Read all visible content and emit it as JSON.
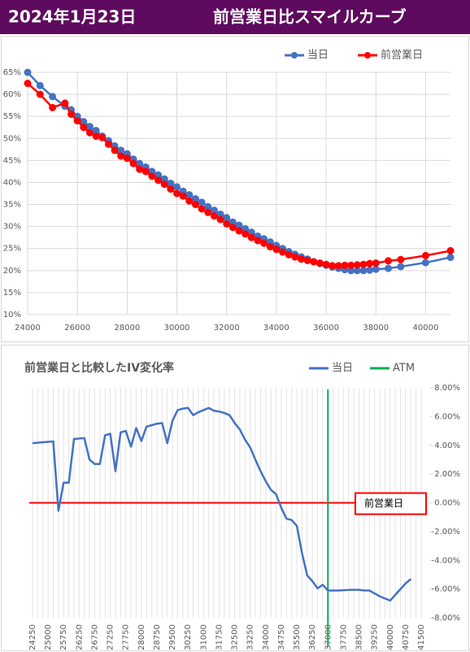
{
  "header": {
    "date": "2024年1月23日",
    "title": "前営業日比スマイルカーブ"
  },
  "chart_data": [
    {
      "type": "line",
      "x": [
        24000,
        24500,
        25000,
        25500,
        25750,
        26000,
        26250,
        26500,
        26750,
        27000,
        27250,
        27500,
        27750,
        28000,
        28250,
        28500,
        28750,
        29000,
        29250,
        29500,
        29750,
        30000,
        30250,
        30500,
        30750,
        31000,
        31250,
        31500,
        31750,
        32000,
        32250,
        32500,
        32750,
        33000,
        33250,
        33500,
        33750,
        34000,
        34250,
        34500,
        34750,
        35000,
        35250,
        35500,
        35750,
        36000,
        36250,
        36500,
        36750,
        37000,
        37250,
        37500,
        37750,
        38000,
        38500,
        39000,
        40000,
        41000
      ],
      "series": [
        {
          "name": "当日",
          "color": "#4472c4",
          "values": [
            65,
            62,
            59.5,
            57.3,
            56.5,
            55,
            53.8,
            52.7,
            51.8,
            50.5,
            49.5,
            48.3,
            47.3,
            46.5,
            45.3,
            44.3,
            43.5,
            42.5,
            41.7,
            40.8,
            39.8,
            39,
            38,
            37.2,
            36.3,
            35.5,
            34.5,
            33.7,
            32.8,
            32,
            31,
            30.3,
            29.5,
            28.7,
            27.8,
            27.2,
            26.5,
            25.7,
            25,
            24.3,
            23.7,
            23.1,
            22.6,
            22,
            21.6,
            21.2,
            20.8,
            20.5,
            20.2,
            20,
            20,
            20,
            20.1,
            20.3,
            20.5,
            20.9,
            21.8,
            23
          ]
        },
        {
          "name": "前営業日",
          "color": "#ff0000",
          "values": [
            62.5,
            60,
            57,
            58,
            55.5,
            54,
            52.5,
            51.3,
            50.5,
            50.2,
            48.7,
            47.3,
            46,
            45.5,
            44.3,
            43,
            42.5,
            41.4,
            40.5,
            39.6,
            38.5,
            37.5,
            36.9,
            35.8,
            35,
            34,
            33.2,
            32.4,
            31.6,
            30.6,
            29.8,
            29,
            28.3,
            27.5,
            26.8,
            26.2,
            25.4,
            24.8,
            24.2,
            23.6,
            23.1,
            22.6,
            22.3,
            22,
            21.7,
            21.4,
            21.1,
            21.1,
            21.2,
            21.2,
            21.3,
            21.4,
            21.6,
            21.7,
            22.2,
            22.5,
            23.4,
            24.5
          ]
        }
      ],
      "xlim": [
        24000,
        41000
      ],
      "xticks": [
        24000,
        26000,
        28000,
        30000,
        32000,
        34000,
        36000,
        38000,
        40000
      ],
      "ylim": [
        10,
        65
      ],
      "yticks": [
        {
          "value": 10,
          "label": "10%"
        },
        {
          "value": 15,
          "label": "15%"
        },
        {
          "value": 20,
          "label": "20%"
        },
        {
          "value": 25,
          "label": "25%"
        },
        {
          "value": 30,
          "label": "30%"
        },
        {
          "value": 35,
          "label": "35%"
        },
        {
          "value": 40,
          "label": "40%"
        },
        {
          "value": 45,
          "label": "45%"
        },
        {
          "value": 50,
          "label": "50%"
        },
        {
          "value": 55,
          "label": "55%"
        },
        {
          "value": 60,
          "label": "60%"
        },
        {
          "value": 65,
          "label": "65%"
        }
      ],
      "grid": true,
      "legend": "top-right"
    },
    {
      "type": "line",
      "title": "前営業日と比較したIV変化率",
      "categories": [
        24250,
        null,
        null,
        25000,
        null,
        null,
        25750,
        null,
        null,
        26250,
        null,
        null,
        26750,
        null,
        null,
        27250,
        null,
        null,
        27750,
        null,
        null,
        28000,
        null,
        null,
        28750,
        null,
        null,
        29500,
        null,
        null,
        30250,
        null,
        null,
        31000,
        null,
        null,
        31750,
        null,
        null,
        32500,
        null,
        null,
        33250,
        null,
        null,
        34000,
        null,
        null,
        34750,
        null,
        null,
        35500,
        null,
        null,
        36250,
        null,
        null,
        37000,
        null,
        null,
        37750,
        null,
        null,
        38500,
        null,
        null,
        39250,
        null,
        null,
        40000,
        null,
        null,
        40750,
        null,
        null,
        41500
      ],
      "series": [
        {
          "name": "当日",
          "color": "#4472c4",
          "values": [
            4.15,
            4.18,
            4.21,
            4.24,
            4.27,
            -0.55,
            1.4,
            1.4,
            4.44,
            4.47,
            4.5,
            3.0,
            2.7,
            2.7,
            4.7,
            4.8,
            2.2,
            4.9,
            5.0,
            3.9,
            5.2,
            4.3,
            5.3,
            5.4,
            5.5,
            5.55,
            4.15,
            5.7,
            6.45,
            6.55,
            6.6,
            6.1,
            6.3,
            6.45,
            6.6,
            6.4,
            6.35,
            6.25,
            6.1,
            5.55,
            5.1,
            4.4,
            3.85,
            3.0,
            2.2,
            1.5,
            0.9,
            0.6,
            -0.35,
            -1.1,
            -1.2,
            -1.6,
            -3.5,
            -5.05,
            -5.45,
            -5.95,
            -5.7,
            -6.1,
            -6.1,
            -6.1,
            -6.08,
            -6.06,
            -6.05,
            -6.05,
            -6.1,
            -6.1,
            -6.3,
            -6.5,
            -6.65,
            -6.8,
            -6.4,
            -6.0,
            -5.6,
            -5.3,
            null,
            null
          ]
        }
      ],
      "vline": {
        "name": "ATM",
        "color": "#00b050",
        "at": 37000
      },
      "hline": {
        "name": "前営業日",
        "color": "#ff0000",
        "value": 0
      },
      "ylim": [
        -8,
        8
      ],
      "yticks": [
        {
          "value": 8,
          "label": "8.00%"
        },
        {
          "value": 6,
          "label": "6.00%"
        },
        {
          "value": 4,
          "label": "4.00%"
        },
        {
          "value": 2,
          "label": "2.00%"
        },
        {
          "value": 0,
          "label": "0.00%"
        },
        {
          "value": -2,
          "label": "-2.00%"
        },
        {
          "value": -4,
          "label": "-4.00%"
        },
        {
          "value": -6,
          "label": "-6.00%"
        },
        {
          "value": -8,
          "label": "-8.00%"
        }
      ],
      "grid": true,
      "legend": "top-right"
    }
  ]
}
